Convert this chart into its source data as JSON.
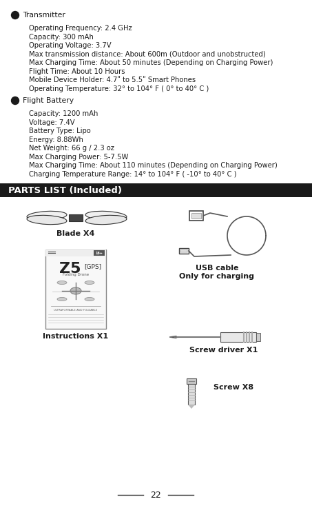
{
  "bg_color": "#ffffff",
  "text_color": "#1a1a1a",
  "section_header_bg": "#1a1a1a",
  "section_header_text": "#ffffff",
  "bullet_color": "#1a1a1a",
  "transmitter_header": "Transmitter",
  "transmitter_lines": [
    "Operating Frequency: 2.4 GHz",
    "Capacity: 300 mAh",
    "Operating Voltage: 3.7V",
    "Max transmission distance: About 600m (Outdoor and unobstructed)",
    "Max Charging Time: About 50 minutes (Depending on Charging Power)",
    "Flight Time: About 10 Hours",
    "Mobile Device Holder: 4.7ʺ to 5.5ʺ Smart Phones",
    "Operating Temperature: 32° to 104° F ( 0° to 40° C )"
  ],
  "battery_header": "Flight Battery",
  "battery_lines": [
    "Capacity: 1200 mAh",
    "Voltage: 7.4V",
    "Battery Type: Lipo",
    "Energy: 8.88Wh",
    "Net Weight: 66 g / 2.3 oz",
    "Max Charging Power: 5-7.5W",
    "Max Charging Time: About 110 minutes (Depending on Charging Power)",
    "Charging Temperature Range: 14° to 104° F ( -10° to 40° C )"
  ],
  "parts_header": "PARTS LIST (Included)",
  "page_number": "22"
}
